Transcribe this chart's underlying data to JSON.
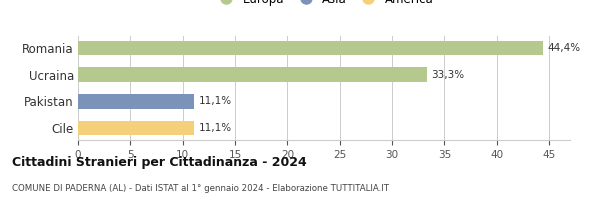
{
  "categories": [
    "Romania",
    "Ucraina",
    "Pakistan",
    "Cile"
  ],
  "values": [
    44.4,
    33.3,
    11.1,
    11.1
  ],
  "colors": [
    "#b5c98e",
    "#b5c98e",
    "#7b93b8",
    "#f5d07a"
  ],
  "continent_colors": {
    "Europa": "#b5c98e",
    "Asia": "#7b93b8",
    "America": "#f5d07a"
  },
  "labels": [
    "44,4%",
    "33,3%",
    "11,1%",
    "11,1%"
  ],
  "xlim": [
    0,
    47
  ],
  "xticks": [
    0,
    5,
    10,
    15,
    20,
    25,
    30,
    35,
    40,
    45
  ],
  "title": "Cittadini Stranieri per Cittadinanza - 2024",
  "subtitle": "COMUNE DI PADERNA (AL) - Dati ISTAT al 1° gennaio 2024 - Elaborazione TUTTITALIA.IT",
  "background_color": "#ffffff",
  "bar_edge_color": "none",
  "grid_color": "#cccccc"
}
